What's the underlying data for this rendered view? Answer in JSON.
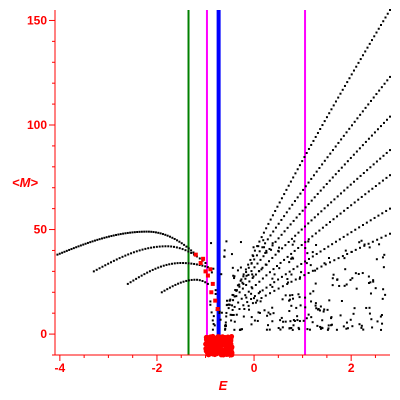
{
  "chart_data": {
    "type": "scatter",
    "title": "",
    "xlabel": "E",
    "ylabel": "<M>",
    "xlim": [
      -4.1,
      2.8
    ],
    "ylim": [
      -10,
      155
    ],
    "x_ticks": [
      -4,
      -2,
      0,
      2
    ],
    "y_ticks": [
      0,
      50,
      100,
      150
    ],
    "grid": false,
    "colors": {
      "axis": "#ff0000",
      "points": "#000000",
      "highlight": "#ff0000",
      "line_green": "#008000",
      "line_magenta": "#ff00ff",
      "line_blue": "#0000ff"
    },
    "vertical_lines": [
      {
        "x": -1.35,
        "color": "#008000"
      },
      {
        "x": -0.97,
        "color": "#ff00ff"
      },
      {
        "x": -0.73,
        "color": "#0000ff"
      },
      {
        "x": 1.05,
        "color": "#ff00ff"
      }
    ],
    "black_curves": [
      {
        "x0": -4.05,
        "x1": -1.2,
        "peak_x": -2.2,
        "peak_y": 49,
        "y0": 38,
        "y1": 38,
        "n": 60
      },
      {
        "x0": -3.3,
        "x1": -1.0,
        "peak_x": -1.8,
        "peak_y": 42,
        "y0": 30,
        "y1": 34,
        "n": 40
      },
      {
        "x0": -2.6,
        "x1": -0.95,
        "peak_x": -1.5,
        "peak_y": 34,
        "y0": 24,
        "y1": 32,
        "n": 30
      },
      {
        "x0": -1.9,
        "x1": -0.95,
        "peak_x": -1.2,
        "peak_y": 26,
        "y0": 20,
        "y1": 24,
        "n": 18
      },
      {
        "x0": -0.4,
        "x1": 2.8,
        "peak_x": 2.8,
        "peak_y": 155,
        "y0": 18,
        "y1": 155,
        "n": 70
      },
      {
        "x0": -0.5,
        "x1": 2.8,
        "peak_x": 2.8,
        "peak_y": 123,
        "y0": 16,
        "y1": 123,
        "n": 60
      },
      {
        "x0": -0.55,
        "x1": 2.8,
        "peak_x": 2.8,
        "peak_y": 104,
        "y0": 14,
        "y1": 104,
        "n": 55
      },
      {
        "x0": -0.5,
        "x1": 2.8,
        "peak_x": 2.8,
        "peak_y": 88,
        "y0": 14,
        "y1": 88,
        "n": 50
      },
      {
        "x0": -0.4,
        "x1": 2.8,
        "peak_x": 2.8,
        "peak_y": 76,
        "y0": 13,
        "y1": 76,
        "n": 45
      },
      {
        "x0": -0.3,
        "x1": 2.8,
        "peak_x": 2.8,
        "peak_y": 60,
        "y0": 12,
        "y1": 60,
        "n": 40
      },
      {
        "x0": -0.2,
        "x1": 2.8,
        "peak_x": 2.8,
        "peak_y": 48,
        "y0": 12,
        "y1": 48,
        "n": 35
      }
    ],
    "black_scatter_region": {
      "x0": -0.9,
      "x1": 2.8,
      "y0": 2,
      "y1": 45,
      "n": 260
    },
    "red_points": [
      {
        "x": -1.05,
        "y": 36
      },
      {
        "x": -1.1,
        "y": 34
      },
      {
        "x": -1.0,
        "y": 30
      },
      {
        "x": -0.95,
        "y": 28
      },
      {
        "x": -0.9,
        "y": 31
      },
      {
        "x": -0.85,
        "y": 24
      },
      {
        "x": -0.88,
        "y": 20
      },
      {
        "x": -0.8,
        "y": 16
      },
      {
        "x": -1.2,
        "y": 38
      },
      {
        "x": -0.75,
        "y": 12
      }
    ],
    "red_cluster": {
      "x0": -1.0,
      "x1": -0.45,
      "y0": -10,
      "y1": -1
    }
  }
}
